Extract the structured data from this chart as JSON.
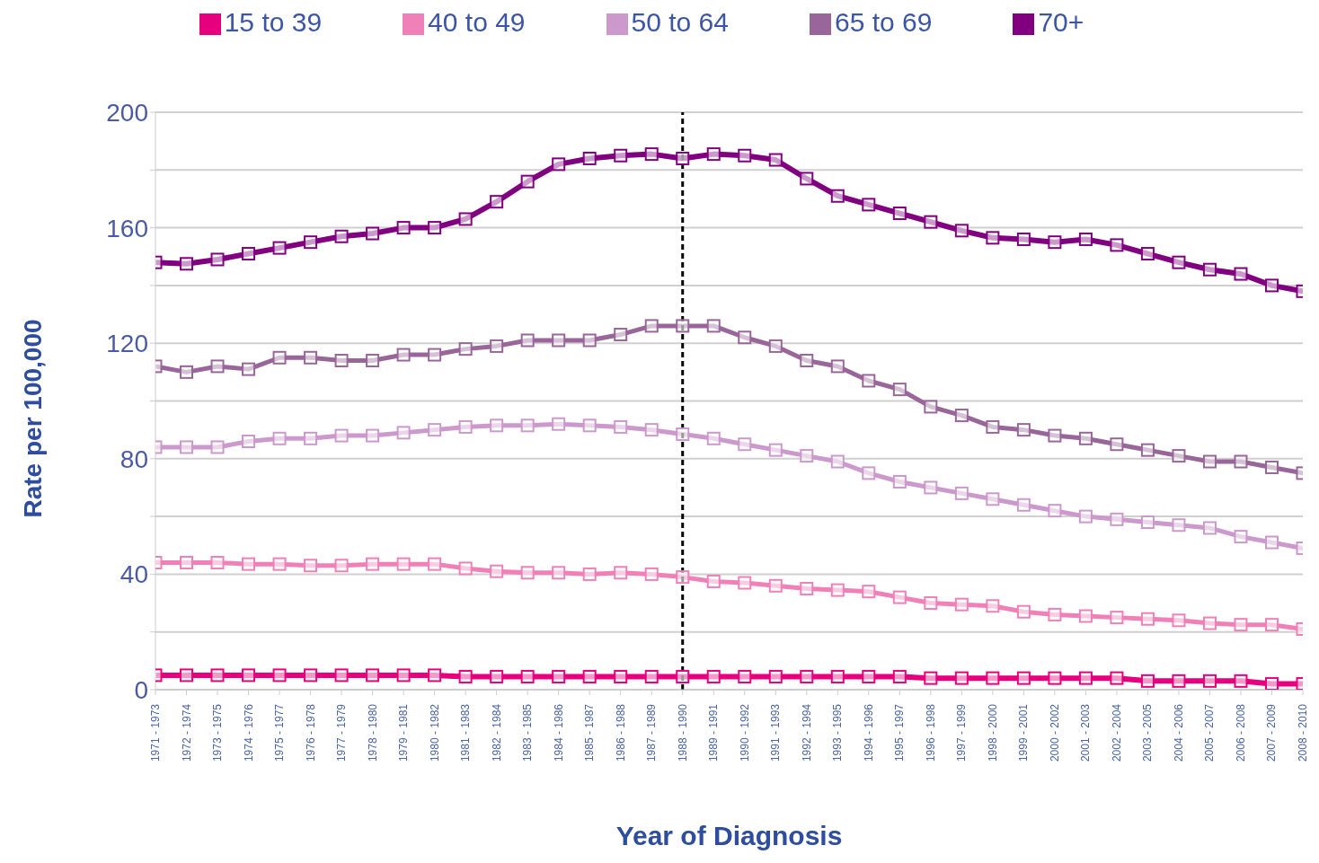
{
  "chart_data": {
    "type": "line",
    "xlabel": "Year of Diagnosis",
    "ylabel": "Rate per 100,000",
    "categories": [
      "1971 - 1973",
      "1972 - 1974",
      "1973 - 1975",
      "1974 - 1976",
      "1975 - 1977",
      "1976 - 1978",
      "1977 - 1979",
      "1978 - 1980",
      "1979 - 1981",
      "1980 - 1982",
      "1981 - 1983",
      "1982 - 1984",
      "1983 - 1985",
      "1984 - 1986",
      "1985 - 1987",
      "1986 - 1988",
      "1987 - 1989",
      "1988 - 1990",
      "1989 - 1991",
      "1990 - 1992",
      "1991 - 1993",
      "1992 - 1994",
      "1993 - 1995",
      "1994 - 1996",
      "1995 - 1997",
      "1996 - 1998",
      "1997 - 1999",
      "1998 - 2000",
      "1999 - 2001",
      "2000 - 2002",
      "2001 - 2003",
      "2002 - 2004",
      "2003 - 2005",
      "2004 - 2006",
      "2005 - 2007",
      "2006 - 2008",
      "2007 - 2009",
      "2008 - 2010"
    ],
    "series": [
      {
        "name": "15 to 39",
        "color": "#e6007e",
        "values": [
          5,
          5,
          5,
          5,
          5,
          5,
          5,
          5,
          5,
          5,
          4.5,
          4.5,
          4.5,
          4.5,
          4.5,
          4.5,
          4.5,
          4.5,
          4.5,
          4.5,
          4.5,
          4.5,
          4.5,
          4.5,
          4.5,
          4,
          4,
          4,
          4,
          4,
          4,
          4,
          3,
          3,
          3,
          3,
          2,
          2
        ]
      },
      {
        "name": "40 to 49",
        "color": "#f080b8",
        "values": [
          44,
          44,
          44,
          43.5,
          43.5,
          43,
          43,
          43.5,
          43.5,
          43.5,
          42,
          41,
          40.5,
          40.5,
          40,
          40.5,
          40,
          39,
          37.5,
          37,
          36,
          35,
          34.5,
          34,
          32,
          30,
          29.5,
          29,
          27,
          26,
          25.5,
          25,
          24.5,
          24,
          23,
          22.5,
          22.5,
          21
        ]
      },
      {
        "name": "50 to 64",
        "color": "#cc99cc",
        "values": [
          84,
          84,
          84,
          86,
          87,
          87,
          88,
          88,
          89,
          90,
          91,
          91.5,
          91.5,
          92,
          91.5,
          91,
          90,
          88.5,
          87,
          85,
          83,
          81,
          79,
          75,
          72,
          70,
          68,
          66,
          64,
          62,
          60,
          59,
          58,
          57,
          56,
          53,
          51,
          49
        ]
      },
      {
        "name": "65 to 69",
        "color": "#996699",
        "values": [
          112,
          110,
          112,
          111,
          115,
          115,
          114,
          114,
          116,
          116,
          118,
          119,
          121,
          121,
          121,
          123,
          126,
          126,
          126,
          122,
          119,
          114,
          112,
          107,
          104,
          98,
          95,
          91,
          90,
          88,
          87,
          85,
          83,
          81,
          79,
          79,
          77,
          75
        ]
      },
      {
        "name": "70+",
        "color": "#800080",
        "values": [
          148,
          147.5,
          149,
          151,
          153,
          155,
          157,
          158,
          160,
          160,
          163,
          169,
          176,
          182,
          184,
          185,
          185.5,
          184,
          185.5,
          185,
          183.5,
          177,
          171,
          168,
          165,
          162,
          159,
          156.5,
          156,
          155,
          156,
          154,
          151,
          148,
          145.5,
          144,
          140,
          138
        ]
      }
    ],
    "ylim": [
      0,
      200
    ],
    "yticks": [
      0,
      {
        "value": 20,
        "label": null
      },
      40,
      {
        "value": 60,
        "label": null
      },
      80,
      {
        "value": 100,
        "label": null
      },
      120,
      {
        "value": 140,
        "label": null
      },
      160,
      {
        "value": 180,
        "label": null
      },
      200
    ],
    "ref_lines": [
      {
        "axis": "x",
        "value": "1988 - 1990",
        "color": "#000000",
        "line_style": "dashed"
      }
    ],
    "grid": "y",
    "legend": "top",
    "marker": "square",
    "line_style": "solid"
  }
}
